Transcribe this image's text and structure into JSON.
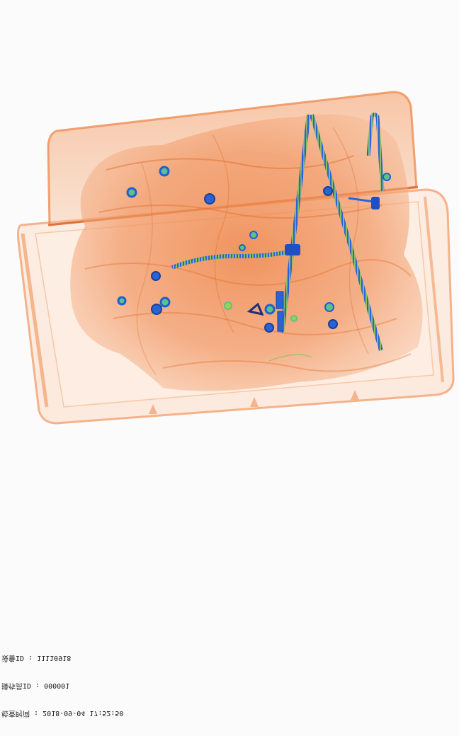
{
  "scan_info": {
    "lines": [
      "检查时间 : 2018-09-04 17:52:50",
      "操作员ID : 000001",
      "设备ID : 11110918"
    ]
  },
  "colors": {
    "background": "#fbfbfb",
    "organic": "#f08a4b",
    "metal": "#1f5fd1",
    "inorganic": "#5fc08a"
  }
}
